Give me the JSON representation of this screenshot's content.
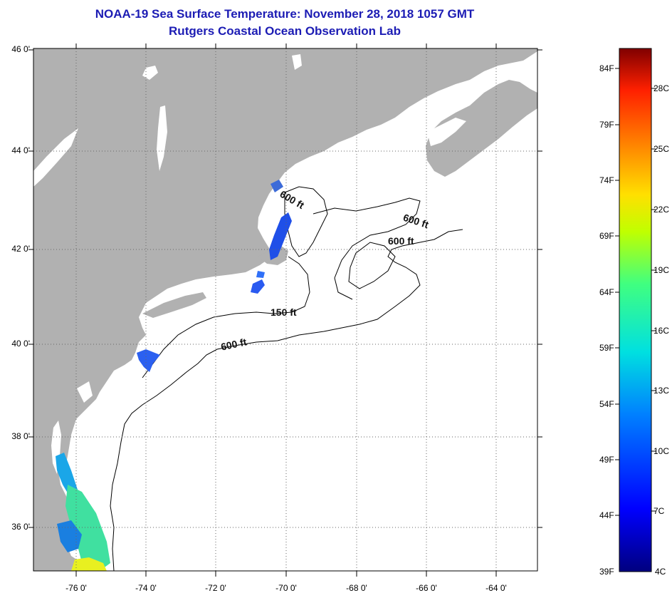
{
  "header": {
    "title": "NOAA-19 Sea Surface Temperature:  November 28, 2018 1057 GMT",
    "subtitle": "Rutgers Coastal Ocean Observation Lab"
  },
  "map": {
    "lat_labels": [
      "46 0'",
      "44 0'",
      "42 0'",
      "40 0'",
      "38 0'",
      "36 0'"
    ],
    "lon_labels": [
      "-76 0'",
      "-74 0'",
      "-72 0'",
      "-70 0'",
      "-68 0'",
      "-66 0'",
      "-64 0'"
    ],
    "contour_labels": [
      "600 ft",
      "600 ft",
      "600 ft",
      "150 ft",
      "600 ft"
    ],
    "colors": {
      "land": "#b1b1b1",
      "ocean": "#ffffff",
      "contour": "#000000"
    }
  },
  "colorbar": {
    "fahrenheit_labels": [
      "84F",
      "79F",
      "74F",
      "69F",
      "64F",
      "59F",
      "54F",
      "49F",
      "44F",
      "39F"
    ],
    "celsius_labels": [
      "28C",
      "25C",
      "22C",
      "19C",
      "16C",
      "13C",
      "10C",
      "7C",
      "4C"
    ],
    "colors": [
      "#00007f",
      "#0000ff",
      "#0080ff",
      "#00e0e0",
      "#40ff80",
      "#c0ff00",
      "#ffe000",
      "#ff8000",
      "#ff2000",
      "#800000"
    ]
  }
}
